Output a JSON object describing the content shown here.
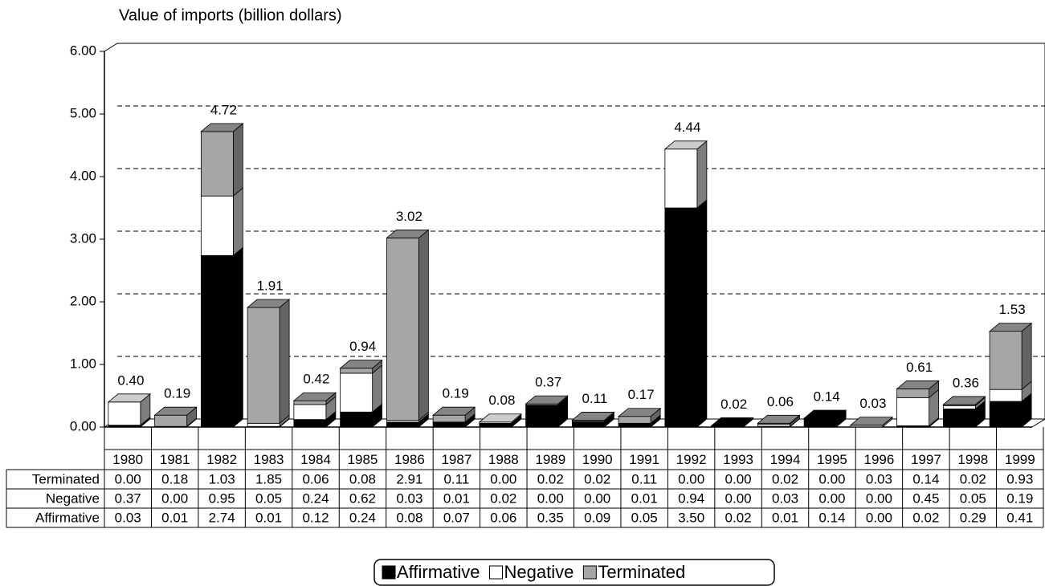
{
  "chart_data": {
    "type": "bar3d_stacked",
    "title": "Value of imports (billion dollars)",
    "categories": [
      "1980",
      "1981",
      "1982",
      "1983",
      "1984",
      "1985",
      "1986",
      "1987",
      "1988",
      "1989",
      "1990",
      "1991",
      "1992",
      "1993",
      "1994",
      "1995",
      "1996",
      "1997",
      "1998",
      "1999"
    ],
    "series": [
      {
        "name": "Affirmative",
        "color": "#000000",
        "values": [
          0.03,
          0.01,
          2.74,
          0.01,
          0.12,
          0.24,
          0.08,
          0.07,
          0.06,
          0.35,
          0.09,
          0.05,
          3.5,
          0.02,
          0.01,
          0.14,
          0,
          0.02,
          0.29,
          0.41
        ],
        "value_labels": [
          "0.03",
          "0.01",
          "2.74",
          "0.01",
          "0.12",
          "0.24",
          "0.08",
          "0.07",
          "0.06",
          "0.35",
          "0.09",
          "0.05",
          "3.50",
          "0.02",
          "0.01",
          "0.14",
          "0.00",
          "0.02",
          "0.29",
          "0.41"
        ]
      },
      {
        "name": "Negative",
        "color": "#ffffff",
        "values": [
          0.37,
          0,
          0.95,
          0.05,
          0.24,
          0.62,
          0.03,
          0.01,
          0.02,
          0,
          0,
          0.01,
          0.94,
          0,
          0.03,
          0,
          0,
          0.45,
          0.05,
          0.19
        ],
        "value_labels": [
          "0.37",
          "0.00",
          "0.95",
          "0.05",
          "0.24",
          "0.62",
          "0.03",
          "0.01",
          "0.02",
          "0.00",
          "0.00",
          "0.01",
          "0.94",
          "0.00",
          "0.03",
          "0.00",
          "0.00",
          "0.45",
          "0.05",
          "0.19"
        ]
      },
      {
        "name": "Terminated",
        "color": "#a6a6a6",
        "values": [
          0,
          0.18,
          1.03,
          1.85,
          0.06,
          0.08,
          2.91,
          0.11,
          0,
          0.02,
          0.02,
          0.11,
          0,
          0,
          0.02,
          0,
          0.03,
          0.14,
          0.02,
          0.93
        ],
        "value_labels": [
          "0.00",
          "0.18",
          "1.03",
          "1.85",
          "0.06",
          "0.08",
          "2.91",
          "0.11",
          "0.00",
          "0.02",
          "0.02",
          "0.11",
          "0.00",
          "0.00",
          "0.02",
          "0.00",
          "0.03",
          "0.14",
          "0.02",
          "0.93"
        ]
      }
    ],
    "totals": {
      "values": [
        0.4,
        0.19,
        4.72,
        1.91,
        0.42,
        0.94,
        3.02,
        0.19,
        0.08,
        0.37,
        0.11,
        0.17,
        4.44,
        0.02,
        0.06,
        0.14,
        0.03,
        0.61,
        0.36,
        1.53
      ],
      "value_labels": [
        "0.40",
        "0.19",
        "4.72",
        "1.91",
        "0.42",
        "0.94",
        "3.02",
        "0.19",
        "0.08",
        "0.37",
        "0.11",
        "0.17",
        "4.44",
        "0.02",
        "0.06",
        "0.14",
        "0.03",
        "0.61",
        "0.36",
        "1.53"
      ]
    },
    "ylim": [
      0,
      6
    ],
    "yticks": [
      {
        "value": 0,
        "label": "0.00"
      },
      {
        "value": 1,
        "label": "1.00"
      },
      {
        "value": 2,
        "label": "2.00"
      },
      {
        "value": 3,
        "label": "3.00"
      },
      {
        "value": 4,
        "label": "4.00"
      },
      {
        "value": 5,
        "label": "5.00"
      },
      {
        "value": 6,
        "label": "6.00"
      }
    ],
    "grid": true,
    "legend": "bottom"
  }
}
